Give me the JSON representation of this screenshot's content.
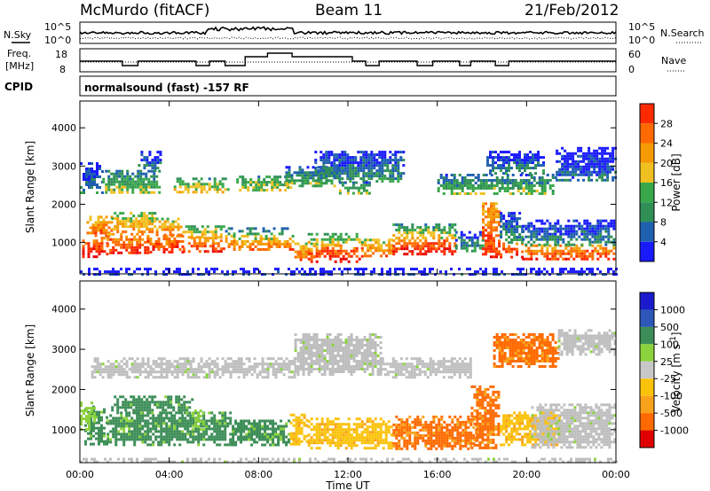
{
  "header": {
    "station": "McMurdo (fitACF)",
    "beam": "Beam 11",
    "date": "21/Feb/2012",
    "cpid": "normalsound (fast) -157 RF",
    "cpid_label": "CPID"
  },
  "noise_panel": {
    "left_label": "N.Sky",
    "right_label": "N.Search",
    "ticks": [
      "10^5",
      "10^0"
    ]
  },
  "freq_panel": {
    "left_label_1": "Freq.",
    "left_label_2": "[MHz]",
    "left_ticks": [
      "18",
      "8"
    ],
    "right_label": "Nave",
    "right_ticks": [
      "60",
      "0"
    ]
  },
  "colors": {
    "power": [
      "#1a1aff",
      "#1f5fb0",
      "#2f8f57",
      "#39a84a",
      "#f0c020",
      "#f59a00",
      "#ff6a00",
      "#ff2a00",
      "#e80000"
    ],
    "velocity": [
      "#e00000",
      "#ff6a00",
      "#f7a21a",
      "#fbc20a",
      "#c8c8c8",
      "#8bd23c",
      "#3c8d57",
      "#2c57b8",
      "#1a1acc"
    ],
    "ground_scatter": "#bebebe"
  },
  "chart_data": [
    {
      "type": "heatmap",
      "name": "power-panel",
      "xlabel": "Time UT",
      "ylabel": "Slant Range [km]",
      "xlim": [
        0,
        24
      ],
      "ylim": [
        180,
        4700
      ],
      "x_ticks": [
        "00:00",
        "04:00",
        "08:00",
        "12:00",
        "16:00",
        "20:00",
        "00:00"
      ],
      "y_ticks": [
        "1000",
        "2000",
        "3000",
        "4000"
      ],
      "colorbar_label": "Power [dB]",
      "colorbar_ticks": [
        "4",
        "8",
        "12",
        "16",
        "20",
        "24",
        "28"
      ],
      "colorbar_range": [
        0,
        30
      ],
      "regions": [
        {
          "t0": 0.0,
          "t1": 24.0,
          "r0": 180,
          "r1": 340,
          "level": 5
        },
        {
          "t0": 0.1,
          "t1": 1.2,
          "r0": 650,
          "r1": 1150,
          "level": 28
        },
        {
          "t0": 0.3,
          "t1": 1.4,
          "r0": 1150,
          "r1": 1700,
          "level": 24
        },
        {
          "t0": 1.2,
          "t1": 3.0,
          "r0": 700,
          "r1": 1250,
          "level": 27
        },
        {
          "t0": 1.4,
          "t1": 3.4,
          "r0": 1250,
          "r1": 1800,
          "level": 20
        },
        {
          "t0": 3.0,
          "t1": 4.6,
          "r0": 750,
          "r1": 1200,
          "level": 27
        },
        {
          "t0": 3.4,
          "t1": 4.6,
          "r0": 1200,
          "r1": 1650,
          "level": 22
        },
        {
          "t0": 4.6,
          "t1": 6.5,
          "r0": 780,
          "r1": 1150,
          "level": 26
        },
        {
          "t0": 4.6,
          "t1": 6.5,
          "r0": 1150,
          "r1": 1450,
          "level": 18
        },
        {
          "t0": 6.5,
          "t1": 9.5,
          "r0": 850,
          "r1": 1200,
          "level": 22
        },
        {
          "t0": 6.5,
          "t1": 9.5,
          "r0": 1200,
          "r1": 1400,
          "level": 12
        },
        {
          "t0": 9.6,
          "t1": 10.6,
          "r0": 550,
          "r1": 1000,
          "level": 22
        },
        {
          "t0": 10.2,
          "t1": 12.6,
          "r0": 500,
          "r1": 950,
          "level": 28
        },
        {
          "t0": 10.2,
          "t1": 12.6,
          "r0": 950,
          "r1": 1250,
          "level": 17
        },
        {
          "t0": 12.6,
          "t1": 14.0,
          "r0": 650,
          "r1": 1100,
          "level": 22
        },
        {
          "t0": 14.0,
          "t1": 16.8,
          "r0": 700,
          "r1": 1150,
          "level": 28
        },
        {
          "t0": 14.0,
          "t1": 16.8,
          "r0": 1150,
          "r1": 1500,
          "level": 16
        },
        {
          "t0": 16.8,
          "t1": 18.0,
          "r0": 800,
          "r1": 1300,
          "level": 10
        },
        {
          "t0": 18.0,
          "t1": 18.8,
          "r0": 600,
          "r1": 2050,
          "level": 26
        },
        {
          "t0": 18.8,
          "t1": 19.8,
          "r0": 600,
          "r1": 1000,
          "level": 28
        },
        {
          "t0": 18.8,
          "t1": 19.8,
          "r0": 1000,
          "r1": 1800,
          "level": 10
        },
        {
          "t0": 19.8,
          "t1": 23.9,
          "r0": 550,
          "r1": 950,
          "level": 26
        },
        {
          "t0": 19.8,
          "t1": 23.9,
          "r0": 950,
          "r1": 1600,
          "level": 9
        },
        {
          "t0": 0.0,
          "t1": 1.0,
          "r0": 2300,
          "r1": 3100,
          "level": 9
        },
        {
          "t0": 1.0,
          "t1": 3.6,
          "r0": 2300,
          "r1": 2900,
          "level": 14
        },
        {
          "t0": 2.6,
          "t1": 3.6,
          "r0": 2900,
          "r1": 3400,
          "level": 8
        },
        {
          "t0": 4.2,
          "t1": 6.6,
          "r0": 2300,
          "r1": 2700,
          "level": 17
        },
        {
          "t0": 7.0,
          "t1": 9.4,
          "r0": 2350,
          "r1": 2750,
          "level": 16
        },
        {
          "t0": 9.2,
          "t1": 11.5,
          "r0": 2500,
          "r1": 3000,
          "level": 12
        },
        {
          "t0": 10.5,
          "t1": 14.5,
          "r0": 2600,
          "r1": 3400,
          "level": 10
        },
        {
          "t0": 11.6,
          "t1": 13.0,
          "r0": 2300,
          "r1": 2600,
          "level": 14
        },
        {
          "t0": 16.0,
          "t1": 21.3,
          "r0": 2300,
          "r1": 2800,
          "level": 13
        },
        {
          "t0": 18.2,
          "t1": 20.8,
          "r0": 2800,
          "r1": 3400,
          "level": 9
        },
        {
          "t0": 21.3,
          "t1": 24.0,
          "r0": 2600,
          "r1": 3500,
          "level": 7
        }
      ]
    },
    {
      "type": "heatmap",
      "name": "velocity-panel",
      "xlabel": "Time UT",
      "ylabel": "Slant Range [km]",
      "xlim": [
        0,
        24
      ],
      "ylim": [
        180,
        4700
      ],
      "x_ticks": [
        "00:00",
        "04:00",
        "08:00",
        "12:00",
        "16:00",
        "20:00",
        "00:00"
      ],
      "y_ticks": [
        "1000",
        "2000",
        "3000",
        "4000"
      ],
      "colorbar_label": "Velocity [m s",
      "colorbar_label_sup": "-1",
      "colorbar_label_end": "]",
      "colorbar_ticks": [
        "1000",
        "500",
        "100",
        "25",
        "-25",
        "-100",
        "-500",
        "-1000"
      ],
      "regions": [
        {
          "t0": 0.0,
          "t1": 24.0,
          "r0": 180,
          "r1": 300,
          "class": "ground"
        },
        {
          "t0": 0.2,
          "t1": 1.2,
          "r0": 650,
          "r1": 1600,
          "class": "v_pos500"
        },
        {
          "t0": 0.0,
          "t1": 0.6,
          "r0": 1000,
          "r1": 1700,
          "class": "v_pos100"
        },
        {
          "t0": 1.2,
          "t1": 6.8,
          "r0": 650,
          "r1": 1450,
          "class": "v_pos500"
        },
        {
          "t0": 1.4,
          "t1": 5.0,
          "r0": 1450,
          "r1": 1850,
          "class": "v_pos500"
        },
        {
          "t0": 6.8,
          "t1": 9.4,
          "r0": 600,
          "r1": 1250,
          "class": "v_pos500"
        },
        {
          "t0": 5.0,
          "t1": 5.6,
          "r0": 1000,
          "r1": 1500,
          "class": "v_pos25"
        },
        {
          "t0": 9.4,
          "t1": 10.2,
          "r0": 650,
          "r1": 1400,
          "class": "v_neg25"
        },
        {
          "t0": 10.2,
          "t1": 14.0,
          "r0": 550,
          "r1": 1300,
          "class": "v_neg25"
        },
        {
          "t0": 14.0,
          "t1": 17.8,
          "r0": 550,
          "r1": 1350,
          "class": "v_neg100"
        },
        {
          "t0": 17.5,
          "t1": 18.8,
          "r0": 550,
          "r1": 2100,
          "class": "v_neg100"
        },
        {
          "t0": 18.8,
          "t1": 21.5,
          "r0": 600,
          "r1": 1450,
          "class": "v_neg25"
        },
        {
          "t0": 20.2,
          "t1": 24.0,
          "r0": 550,
          "r1": 1650,
          "class": "ground"
        },
        {
          "t0": 0.5,
          "t1": 9.6,
          "r0": 2300,
          "r1": 2800,
          "class": "ground"
        },
        {
          "t0": 9.6,
          "t1": 13.5,
          "r0": 2400,
          "r1": 3400,
          "class": "ground"
        },
        {
          "t0": 13.5,
          "t1": 17.5,
          "r0": 2300,
          "r1": 2800,
          "class": "ground"
        },
        {
          "t0": 18.5,
          "t1": 21.4,
          "r0": 2600,
          "r1": 3400,
          "class": "v_neg100"
        },
        {
          "t0": 21.4,
          "t1": 24.0,
          "r0": 2900,
          "r1": 3500,
          "class": "ground"
        }
      ]
    }
  ]
}
